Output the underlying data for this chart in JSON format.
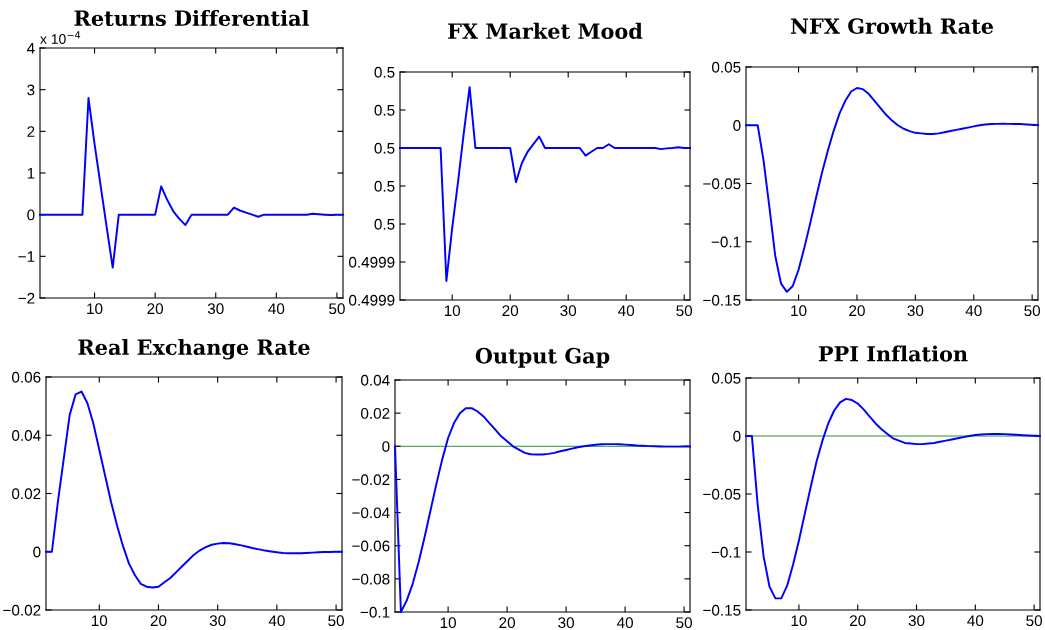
{
  "chart_data": [
    {
      "type": "line",
      "title": "Returns Differential",
      "annotations": [
        "x 10$^{−4}$"
      ],
      "x": [
        1,
        2,
        3,
        4,
        5,
        6,
        7,
        8,
        9,
        10,
        11,
        12,
        13,
        14,
        15,
        16,
        17,
        18,
        19,
        20,
        21,
        22,
        23,
        24,
        25,
        26,
        27,
        28,
        29,
        30,
        31,
        32,
        33,
        34,
        35,
        36,
        37,
        38,
        39,
        40,
        41,
        42,
        43,
        44,
        45,
        46,
        47,
        48,
        49,
        50,
        51
      ],
      "xlim": [
        1,
        51
      ],
      "xticks": [
        10,
        20,
        30,
        40,
        50
      ],
      "ylim": [
        -2,
        4
      ],
      "yticks": [
        -2,
        -1,
        0,
        1,
        2,
        3,
        4
      ],
      "series": [
        {
          "color": "#0000ff",
          "values": [
            0,
            0,
            0,
            0,
            0,
            0,
            0,
            0,
            2.8,
            1.7,
            0.7,
            -0.3,
            -1.27,
            0,
            0,
            0,
            0,
            0,
            0,
            0,
            0.68,
            0.35,
            0.08,
            -0.1,
            -0.25,
            0,
            0,
            0,
            0,
            0,
            0,
            0,
            0.17,
            0.1,
            0.05,
            0,
            -0.05,
            0,
            0,
            0,
            0,
            0,
            0,
            0,
            0,
            0.02,
            0.01,
            0,
            -0.01,
            0,
            0
          ]
        }
      ]
    },
    {
      "type": "line",
      "title": "FX Market Mood",
      "x": [
        1,
        2,
        3,
        4,
        5,
        6,
        7,
        8,
        9,
        10,
        11,
        12,
        13,
        14,
        15,
        16,
        17,
        18,
        19,
        20,
        21,
        22,
        23,
        24,
        25,
        26,
        27,
        28,
        29,
        30,
        31,
        32,
        33,
        34,
        35,
        36,
        37,
        38,
        39,
        40,
        41,
        42,
        43,
        44,
        45,
        46,
        47,
        48,
        49,
        50,
        51
      ],
      "xlim": [
        1,
        51
      ],
      "xticks": [
        10,
        20,
        30,
        40,
        50
      ],
      "ylim": [
        0.49993,
        0.49999
      ],
      "yticks": [
        {
          "value": 0.49993,
          "label": "0.4999"
        },
        {
          "value": 0.49994,
          "label": "0.4999"
        },
        {
          "value": 0.49995,
          "label": "0.5"
        },
        {
          "value": 0.49996,
          "label": "0.5"
        },
        {
          "value": 0.49997,
          "label": "0.5"
        },
        {
          "value": 0.49998,
          "label": "0.5"
        },
        {
          "value": 0.49999,
          "label": "0.5"
        }
      ],
      "series": [
        {
          "color": "#0000ff",
          "values": [
            0.49997,
            0.49997,
            0.49997,
            0.49997,
            0.49997,
            0.49997,
            0.49997,
            0.49997,
            0.499935,
            0.499949,
            0.499961,
            0.499974,
            0.499986,
            0.49997,
            0.49997,
            0.49997,
            0.49997,
            0.49997,
            0.49997,
            0.49997,
            0.499961,
            0.499966,
            0.499969,
            0.499971,
            0.499973,
            0.49997,
            0.49997,
            0.49997,
            0.49997,
            0.49997,
            0.49997,
            0.49997,
            0.499968,
            0.499969,
            0.49997,
            0.49997,
            0.499971,
            0.49997,
            0.49997,
            0.49997,
            0.49997,
            0.49997,
            0.49997,
            0.49997,
            0.49997,
            0.4999697,
            0.4999699,
            0.49997,
            0.4999702,
            0.49997,
            0.49997
          ]
        }
      ]
    },
    {
      "type": "line",
      "title": "NFX Growth Rate",
      "x": [
        1,
        2,
        3,
        4,
        5,
        6,
        7,
        8,
        9,
        10,
        11,
        12,
        13,
        14,
        15,
        16,
        17,
        18,
        19,
        20,
        21,
        22,
        23,
        24,
        25,
        26,
        27,
        28,
        29,
        30,
        31,
        32,
        33,
        34,
        35,
        36,
        37,
        38,
        39,
        40,
        41,
        42,
        43,
        44,
        45,
        46,
        47,
        48,
        49,
        50,
        51
      ],
      "xlim": [
        1,
        51
      ],
      "xticks": [
        10,
        20,
        30,
        40,
        50
      ],
      "ylim": [
        -0.15,
        0.05
      ],
      "yticks": [
        -0.15,
        -0.1,
        -0.05,
        0,
        0.05
      ],
      "series": [
        {
          "color": "#0000ff",
          "values": [
            0,
            0,
            0,
            -0.03,
            -0.07,
            -0.112,
            -0.136,
            -0.143,
            -0.138,
            -0.124,
            -0.105,
            -0.084,
            -0.062,
            -0.041,
            -0.022,
            -0.005,
            0.01,
            0.021,
            0.029,
            0.032,
            0.031,
            0.027,
            0.021,
            0.015,
            0.009,
            0.004,
            0,
            -0.003,
            -0.005,
            -0.0065,
            -0.007,
            -0.0075,
            -0.0075,
            -0.007,
            -0.006,
            -0.005,
            -0.004,
            -0.003,
            -0.002,
            -0.001,
            0,
            0.0007,
            0.001,
            0.0012,
            0.0013,
            0.0012,
            0.0011,
            0.001,
            0.0007,
            0.0004,
            0
          ]
        }
      ]
    },
    {
      "type": "line",
      "title": "Real Exchange Rate",
      "x": [
        1,
        2,
        3,
        4,
        5,
        6,
        7,
        8,
        9,
        10,
        11,
        12,
        13,
        14,
        15,
        16,
        17,
        18,
        19,
        20,
        21,
        22,
        23,
        24,
        25,
        26,
        27,
        28,
        29,
        30,
        31,
        32,
        33,
        34,
        35,
        36,
        37,
        38,
        39,
        40,
        41,
        42,
        43,
        44,
        45,
        46,
        47,
        48,
        49,
        50,
        51
      ],
      "xlim": [
        1,
        51
      ],
      "xticks": [
        10,
        20,
        30,
        40,
        50
      ],
      "ylim": [
        -0.02,
        0.06
      ],
      "yticks": [
        -0.02,
        0,
        0.02,
        0.04,
        0.06
      ],
      "series": [
        {
          "color": "#0000ff",
          "values": [
            0,
            0,
            0.017,
            0.032,
            0.047,
            0.054,
            0.055,
            0.051,
            0.044,
            0.035,
            0.026,
            0.017,
            0.009,
            0.002,
            -0.004,
            -0.008,
            -0.011,
            -0.012,
            -0.0123,
            -0.012,
            -0.0105,
            -0.009,
            -0.007,
            -0.005,
            -0.003,
            -0.001,
            0.0005,
            0.0016,
            0.0024,
            0.0028,
            0.003,
            0.0029,
            0.0026,
            0.0022,
            0.0017,
            0.0012,
            0.0008,
            0.0004,
            0.0001,
            -0.0002,
            -0.0004,
            -0.0005,
            -0.0005,
            -0.0005,
            -0.0004,
            -0.0003,
            -0.0002,
            -0.0001,
            -0.0001,
            0,
            0
          ]
        }
      ]
    },
    {
      "type": "line",
      "title": "Output Gap",
      "x": [
        1,
        2,
        3,
        4,
        5,
        6,
        7,
        8,
        9,
        10,
        11,
        12,
        13,
        14,
        15,
        16,
        17,
        18,
        19,
        20,
        21,
        22,
        23,
        24,
        25,
        26,
        27,
        28,
        29,
        30,
        31,
        32,
        33,
        34,
        35,
        36,
        37,
        38,
        39,
        40,
        41,
        42,
        43,
        44,
        45,
        46,
        47,
        48,
        49,
        50,
        51
      ],
      "xlim": [
        1,
        51
      ],
      "xticks": [
        10,
        20,
        30,
        40,
        50
      ],
      "ylim": [
        -0.1,
        0.04
      ],
      "yticks": [
        -0.1,
        -0.08,
        -0.06,
        -0.04,
        -0.02,
        0,
        0.02,
        0.04
      ],
      "ref_lines": [
        {
          "axis": "y",
          "value": 0,
          "color": "#008000"
        }
      ],
      "series": [
        {
          "color": "#0000ff",
          "values": [
            0,
            -0.1,
            -0.093,
            -0.083,
            -0.07,
            -0.055,
            -0.039,
            -0.023,
            -0.008,
            0.005,
            0.014,
            0.02,
            0.023,
            0.023,
            0.021,
            0.018,
            0.014,
            0.01,
            0.006,
            0.003,
            0,
            -0.002,
            -0.004,
            -0.0048,
            -0.005,
            -0.005,
            -0.0046,
            -0.004,
            -0.003,
            -0.0022,
            -0.0014,
            -0.0006,
            0,
            0.0005,
            0.0009,
            0.0012,
            0.0013,
            0.0013,
            0.0012,
            0.001,
            0.0008,
            0.0005,
            0.0003,
            0.0001,
            0,
            -0.0001,
            -0.0002,
            -0.0002,
            -0.0002,
            -0.0001,
            -0.0001
          ]
        }
      ]
    },
    {
      "type": "line",
      "title": "PPI Inflation",
      "x": [
        1,
        2,
        3,
        4,
        5,
        6,
        7,
        8,
        9,
        10,
        11,
        12,
        13,
        14,
        15,
        16,
        17,
        18,
        19,
        20,
        21,
        22,
        23,
        24,
        25,
        26,
        27,
        28,
        29,
        30,
        31,
        32,
        33,
        34,
        35,
        36,
        37,
        38,
        39,
        40,
        41,
        42,
        43,
        44,
        45,
        46,
        47,
        48,
        49,
        50,
        51
      ],
      "xlim": [
        1,
        51
      ],
      "xticks": [
        10,
        20,
        30,
        40,
        50
      ],
      "ylim": [
        -0.15,
        0.05
      ],
      "yticks": [
        -0.15,
        -0.1,
        -0.05,
        0,
        0.05
      ],
      "ref_lines": [
        {
          "axis": "y",
          "value": 0,
          "color": "#008000"
        }
      ],
      "series": [
        {
          "color": "#0000ff",
          "values": [
            0,
            0,
            -0.06,
            -0.104,
            -0.13,
            -0.14,
            -0.14,
            -0.129,
            -0.111,
            -0.09,
            -0.067,
            -0.044,
            -0.022,
            -0.004,
            0.011,
            0.022,
            0.029,
            0.032,
            0.031,
            0.028,
            0.023,
            0.017,
            0.011,
            0.006,
            0.002,
            -0.002,
            -0.004,
            -0.006,
            -0.0065,
            -0.007,
            -0.007,
            -0.0065,
            -0.006,
            -0.005,
            -0.004,
            -0.003,
            -0.002,
            -0.001,
            0,
            0.0008,
            0.0013,
            0.0016,
            0.0017,
            0.0017,
            0.0016,
            0.0013,
            0.001,
            0.0007,
            0.0004,
            0.0002,
            0
          ]
        }
      ]
    }
  ]
}
